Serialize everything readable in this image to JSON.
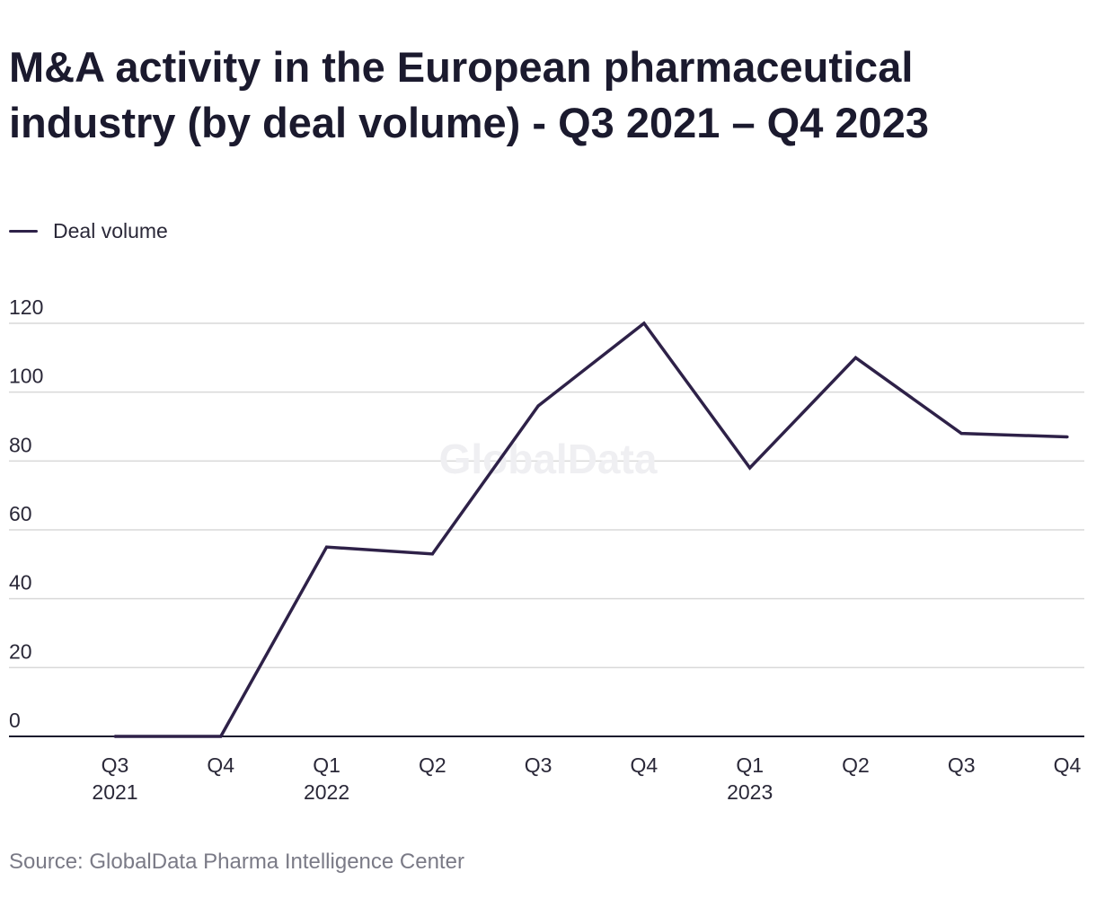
{
  "chart_data": {
    "type": "line",
    "title": "M&A activity in the European pharmaceutical industry (by deal volume) - Q3 2021 – Q4 2023",
    "xlabel": "",
    "ylabel": "",
    "categories": [
      {
        "quarter": "Q3",
        "year": "2021"
      },
      {
        "quarter": "Q4",
        "year": ""
      },
      {
        "quarter": "Q1",
        "year": "2022"
      },
      {
        "quarter": "Q2",
        "year": ""
      },
      {
        "quarter": "Q3",
        "year": ""
      },
      {
        "quarter": "Q4",
        "year": ""
      },
      {
        "quarter": "Q1",
        "year": "2023"
      },
      {
        "quarter": "Q2",
        "year": ""
      },
      {
        "quarter": "Q3",
        "year": ""
      },
      {
        "quarter": "Q4",
        "year": ""
      }
    ],
    "series": [
      {
        "name": "Deal volume",
        "color": "#2e2148",
        "values": [
          0,
          0,
          55,
          53,
          96,
          120,
          78,
          110,
          88,
          87
        ]
      }
    ],
    "ylim": [
      0,
      120
    ],
    "yticks": [
      "0",
      "20",
      "40",
      "60",
      "80",
      "100",
      "120"
    ],
    "grid": true,
    "legend_position": "top-left"
  },
  "watermark": "GlobalData",
  "source": "Source: GlobalData Pharma Intelligence Center",
  "colors": {
    "line": "#2e2148",
    "grid": "#d9d9d9",
    "axis": "#1b1a2e",
    "text": "#2a2838",
    "source": "#7a7a86"
  }
}
